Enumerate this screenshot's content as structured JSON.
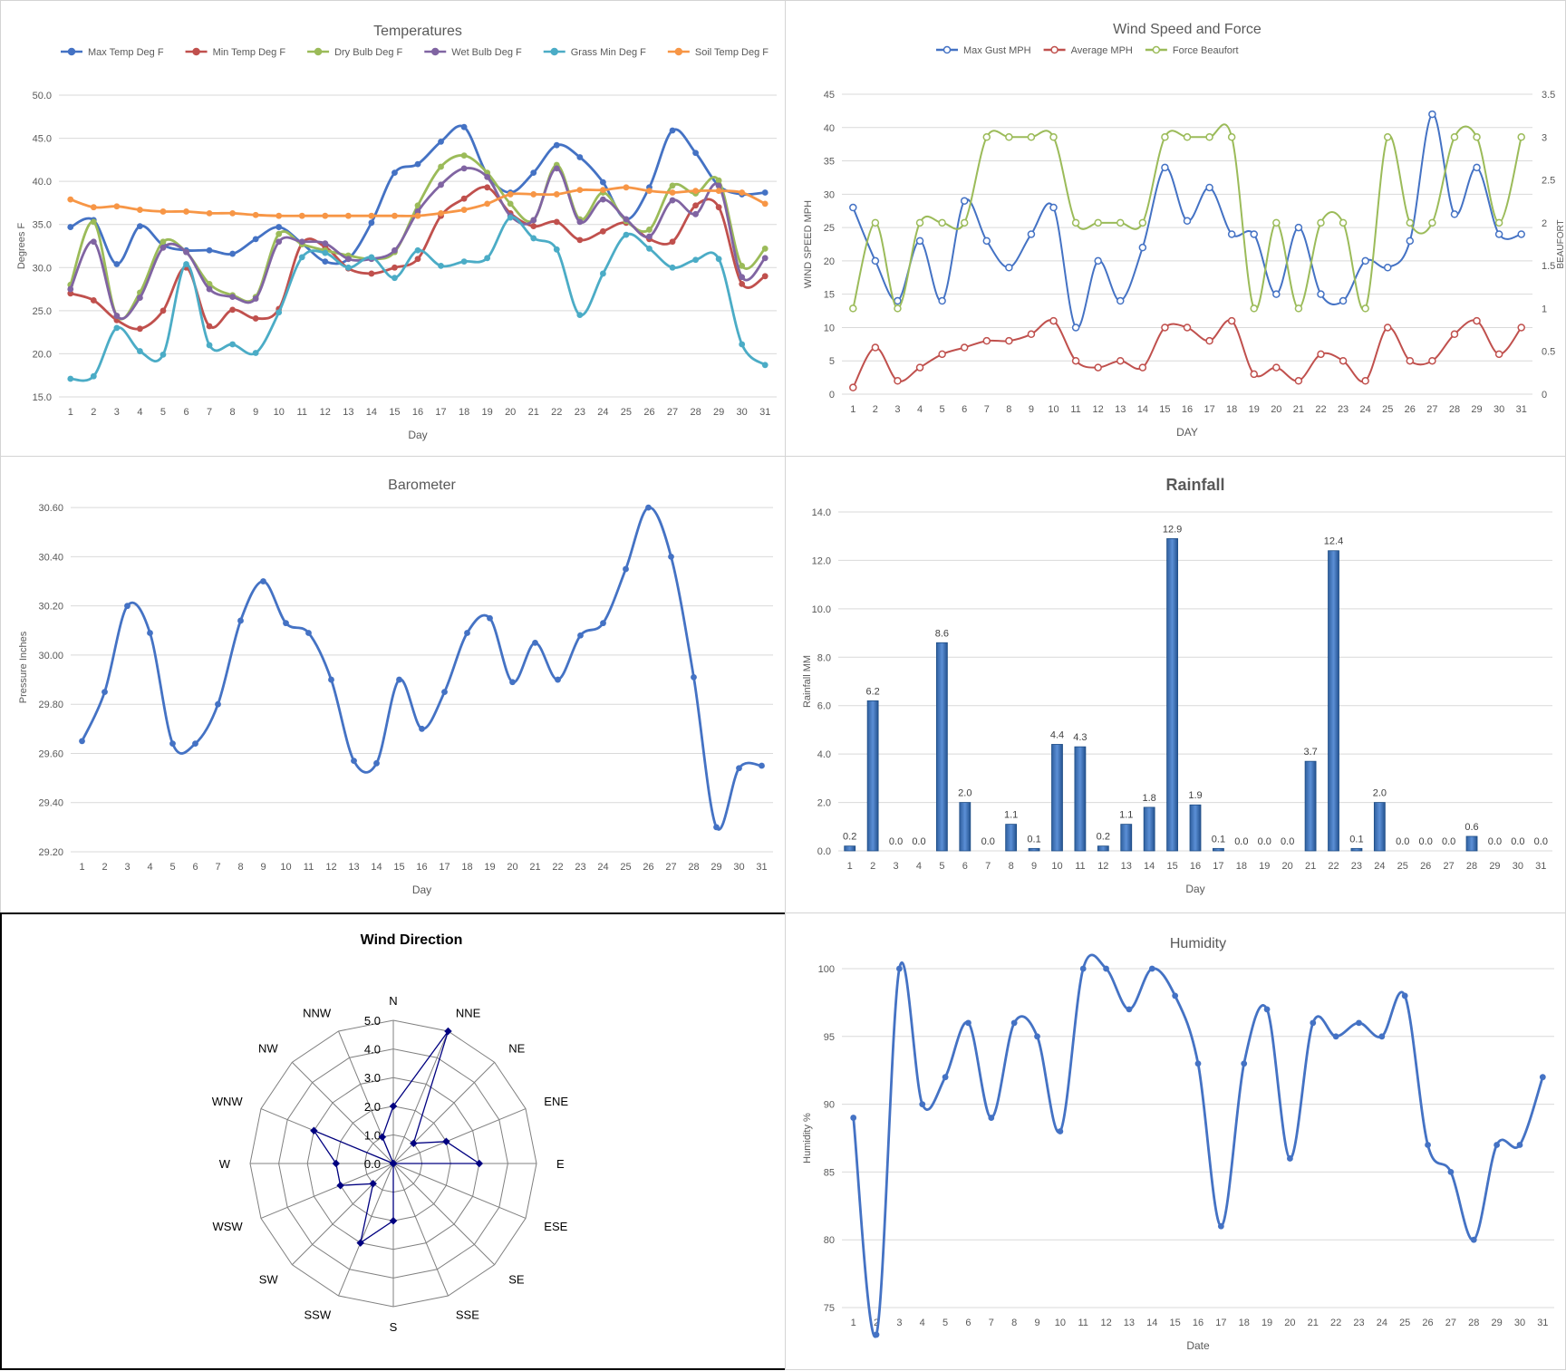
{
  "chart_data": [
    {
      "id": "temperatures",
      "type": "line",
      "title": "Temperatures",
      "xlabel": "Day",
      "ylabel": "Degrees F",
      "ylim": [
        15,
        50
      ],
      "yticks": [
        "15.0",
        "20.0",
        "25.0",
        "30.0",
        "35.0",
        "40.0",
        "45.0",
        "50.0"
      ],
      "categories": [
        "1",
        "2",
        "3",
        "4",
        "5",
        "6",
        "7",
        "8",
        "9",
        "10",
        "11",
        "12",
        "13",
        "14",
        "15",
        "16",
        "17",
        "18",
        "19",
        "20",
        "21",
        "22",
        "23",
        "24",
        "25",
        "26",
        "27",
        "28",
        "29",
        "30",
        "31"
      ],
      "legend": "top",
      "grid": true,
      "series": [
        {
          "name": "Max Temp Deg F",
          "color": "#4472c4",
          "values": [
            34.7,
            35.5,
            30.4,
            34.8,
            32.6,
            32,
            32,
            31.6,
            33.3,
            34.7,
            32.8,
            30.7,
            31,
            35.2,
            41,
            42,
            44.6,
            46.3,
            40.8,
            38.7,
            41,
            44.2,
            42.8,
            39.9,
            35.6,
            39.3,
            45.9,
            43.3,
            39.5,
            38.5,
            38.7
          ]
        },
        {
          "name": "Min Temp Deg F",
          "color": "#c0504d",
          "values": [
            27,
            26.2,
            23.9,
            22.9,
            25,
            30,
            23.2,
            25.1,
            24.1,
            25.2,
            32.8,
            32.4,
            29.9,
            29.3,
            30,
            31,
            36,
            38,
            39.3,
            36.3,
            34.8,
            35.3,
            33.2,
            34.2,
            35.2,
            33.3,
            33,
            37.2,
            37,
            28.1,
            29
          ]
        },
        {
          "name": "Dry Bulb Deg F",
          "color": "#9bbb59",
          "values": [
            28,
            35.3,
            24.4,
            27.1,
            33,
            31.8,
            28.1,
            26.8,
            26.6,
            33.9,
            32.7,
            32,
            31.4,
            31,
            31.8,
            37.2,
            41.7,
            43,
            41,
            37.4,
            35.5,
            41.9,
            35.6,
            38.7,
            35.4,
            34.4,
            39.5,
            38.6,
            40.1,
            30.2,
            32.2
          ]
        },
        {
          "name": "Wet Bulb Deg F",
          "color": "#8064a2",
          "values": [
            27.5,
            33,
            24.4,
            26.5,
            32.3,
            31.8,
            27.5,
            26.6,
            26.4,
            33,
            33,
            32.8,
            31,
            31,
            32,
            36.5,
            39.6,
            41.5,
            40.5,
            36,
            35.5,
            41.5,
            35.3,
            37.9,
            35.6,
            33.6,
            37.8,
            36.2,
            39.5,
            28.9,
            31.1
          ]
        },
        {
          "name": "Grass Min Deg F",
          "color": "#4bacc6",
          "values": [
            17.1,
            17.4,
            23,
            20.3,
            19.9,
            30.4,
            21,
            21.1,
            20.1,
            24.8,
            31.2,
            31.7,
            30,
            31.2,
            28.8,
            32,
            30.2,
            30.7,
            31.1,
            35.8,
            33.4,
            32.1,
            24.5,
            29.3,
            33.8,
            32.2,
            30,
            30.9,
            31,
            21.1,
            18.7
          ]
        },
        {
          "name": "Soil Temp Deg F",
          "color": "#f79646",
          "values": [
            37.9,
            37,
            37.1,
            36.7,
            36.5,
            36.5,
            36.3,
            36.3,
            36.1,
            36,
            36,
            36,
            36,
            36,
            36,
            36,
            36.3,
            36.7,
            37.4,
            38.5,
            38.5,
            38.5,
            39,
            39,
            39.3,
            38.9,
            38.7,
            38.9,
            38.9,
            38.7,
            37.4
          ]
        }
      ]
    },
    {
      "id": "wind",
      "type": "line",
      "title": "Wind Speed and Force",
      "xlabel": "DAY",
      "ylabel": "WIND SPEED MPH",
      "y2label": "BEAUFORT",
      "ylim": [
        0,
        45
      ],
      "y2lim": [
        0,
        3.5
      ],
      "yticks": [
        "0",
        "5",
        "10",
        "15",
        "20",
        "25",
        "30",
        "35",
        "40",
        "45"
      ],
      "y2ticks": [
        "0",
        "0.5",
        "1",
        "1.5",
        "2",
        "2.5",
        "3",
        "3.5"
      ],
      "categories": [
        "1",
        "2",
        "3",
        "4",
        "5",
        "6",
        "7",
        "8",
        "9",
        "10",
        "11",
        "12",
        "13",
        "14",
        "15",
        "16",
        "17",
        "18",
        "19",
        "20",
        "21",
        "22",
        "23",
        "24",
        "25",
        "26",
        "27",
        "28",
        "29",
        "30",
        "31"
      ],
      "legend": "top",
      "grid": true,
      "series": [
        {
          "name": "Max Gust MPH",
          "color": "#4472c4",
          "axis": "left",
          "values": [
            28,
            20,
            14,
            23,
            14,
            29,
            23,
            19,
            24,
            28,
            10,
            20,
            14,
            22,
            34,
            26,
            31,
            24,
            24,
            15,
            25,
            15,
            14,
            20,
            19,
            23,
            42,
            27,
            34,
            24,
            24
          ]
        },
        {
          "name": "Average MPH",
          "color": "#c0504d",
          "axis": "left",
          "values": [
            1,
            7,
            2,
            4,
            6,
            7,
            8,
            8,
            9,
            11,
            5,
            4,
            5,
            4,
            10,
            10,
            8,
            11,
            3,
            4,
            2,
            6,
            5,
            2,
            10,
            5,
            5,
            9,
            11,
            6,
            10
          ]
        },
        {
          "name": "Force Beaufort",
          "color": "#9bbb59",
          "axis": "right",
          "values": [
            1,
            2,
            1,
            2,
            2,
            2,
            3,
            3,
            3,
            3,
            2,
            2,
            2,
            2,
            3,
            3,
            3,
            3,
            1,
            2,
            1,
            2,
            2,
            1,
            3,
            2,
            2,
            3,
            3,
            2,
            3
          ]
        }
      ]
    },
    {
      "id": "barometer",
      "type": "line",
      "title": "Barometer",
      "xlabel": "Day",
      "ylabel": "Pressure Inches",
      "ylim": [
        29.2,
        30.7
      ],
      "yticks": [
        "29.20",
        "29.40",
        "29.60",
        "29.80",
        "30.00",
        "30.20",
        "30.40",
        "30.60"
      ],
      "categories": [
        "1",
        "2",
        "3",
        "4",
        "5",
        "6",
        "7",
        "8",
        "9",
        "10",
        "11",
        "12",
        "13",
        "14",
        "15",
        "16",
        "17",
        "18",
        "19",
        "20",
        "21",
        "22",
        "23",
        "24",
        "25",
        "26",
        "27",
        "28",
        "29",
        "30",
        "31"
      ],
      "grid": true,
      "series": [
        {
          "name": "",
          "color": "#4472c4",
          "values": [
            29.65,
            29.85,
            30.2,
            30.09,
            29.64,
            29.64,
            29.8,
            30.14,
            30.3,
            30.13,
            30.09,
            29.9,
            29.57,
            29.56,
            29.9,
            29.7,
            29.85,
            30.09,
            30.15,
            29.89,
            30.05,
            29.9,
            30.08,
            30.13,
            30.35,
            30.6,
            30.4,
            29.91,
            29.3,
            29.54,
            29.55
          ]
        }
      ]
    },
    {
      "id": "rainfall",
      "type": "bar",
      "title": "Rainfall",
      "xlabel": "Day",
      "ylabel": "Rainfall MM",
      "ylim": [
        0,
        14
      ],
      "yticks": [
        "0.0",
        "2.0",
        "4.0",
        "6.0",
        "8.0",
        "10.0",
        "12.0",
        "14.0"
      ],
      "categories": [
        "1",
        "2",
        "3",
        "4",
        "5",
        "6",
        "7",
        "8",
        "9",
        "10",
        "11",
        "12",
        "13",
        "14",
        "15",
        "16",
        "17",
        "18",
        "19",
        "20",
        "21",
        "22",
        "23",
        "24",
        "25",
        "26",
        "27",
        "28",
        "29",
        "30",
        "31"
      ],
      "grid": true,
      "values": [
        0.2,
        6.2,
        0.0,
        0.0,
        8.6,
        2.0,
        0.0,
        1.1,
        0.1,
        4.4,
        4.3,
        0.2,
        1.1,
        1.8,
        12.9,
        1.9,
        0.1,
        0.0,
        0.0,
        0.0,
        3.7,
        12.4,
        0.1,
        2.0,
        0.0,
        0.0,
        0.0,
        0.6,
        0.0,
        0.0,
        0.0
      ],
      "data_labels": [
        "0.2",
        "6.2",
        "0.0",
        "0.0",
        "8.6",
        "2.0",
        "0.0",
        "1.1",
        "0.1",
        "4.4",
        "4.3",
        "0.2",
        "1.1",
        "1.8",
        "12.9",
        "1.9",
        "0.1",
        "0.0",
        "0.0",
        "0.0",
        "3.7",
        "12.4",
        "0.1",
        "2.0",
        "0.0",
        "0.0",
        "0.0",
        "0.6",
        "0.0",
        "0.0",
        "0.0"
      ]
    },
    {
      "id": "wind_direction",
      "type": "radar",
      "title": "Wind Direction",
      "rlim": [
        0,
        5
      ],
      "rticks": [
        "0.0",
        "1.0",
        "2.0",
        "3.0",
        "4.0",
        "5.0"
      ],
      "categories": [
        "N",
        "NNE",
        "NE",
        "ENE",
        "E",
        "ESE",
        "SE",
        "SSE",
        "S",
        "SSW",
        "SW",
        "WSW",
        "W",
        "WNW",
        "NW",
        "NNW"
      ],
      "values": [
        2,
        5,
        1,
        2,
        3,
        0,
        0,
        0,
        2,
        3,
        1,
        2,
        2,
        3,
        0,
        1
      ],
      "series_color": "#000080"
    },
    {
      "id": "humidity",
      "type": "line",
      "title": "Humidity",
      "xlabel": "Date",
      "ylabel": "Humidity %",
      "ylim": [
        75,
        100
      ],
      "yticks": [
        "75",
        "80",
        "85",
        "90",
        "95",
        "100"
      ],
      "categories": [
        "1",
        "2",
        "3",
        "4",
        "5",
        "6",
        "7",
        "8",
        "9",
        "10",
        "11",
        "12",
        "13",
        "14",
        "15",
        "16",
        "17",
        "18",
        "19",
        "20",
        "21",
        "22",
        "23",
        "24",
        "25",
        "26",
        "27",
        "28",
        "29",
        "30",
        "31"
      ],
      "grid": true,
      "series": [
        {
          "name": "",
          "color": "#4472c4",
          "values": [
            89,
            73,
            100,
            90,
            92,
            96,
            89,
            96,
            95,
            88,
            100,
            100,
            97,
            100,
            98,
            93,
            81,
            93,
            97,
            86,
            96,
            95,
            96,
            95,
            98,
            87,
            85,
            80,
            87,
            87,
            92
          ]
        }
      ]
    }
  ]
}
